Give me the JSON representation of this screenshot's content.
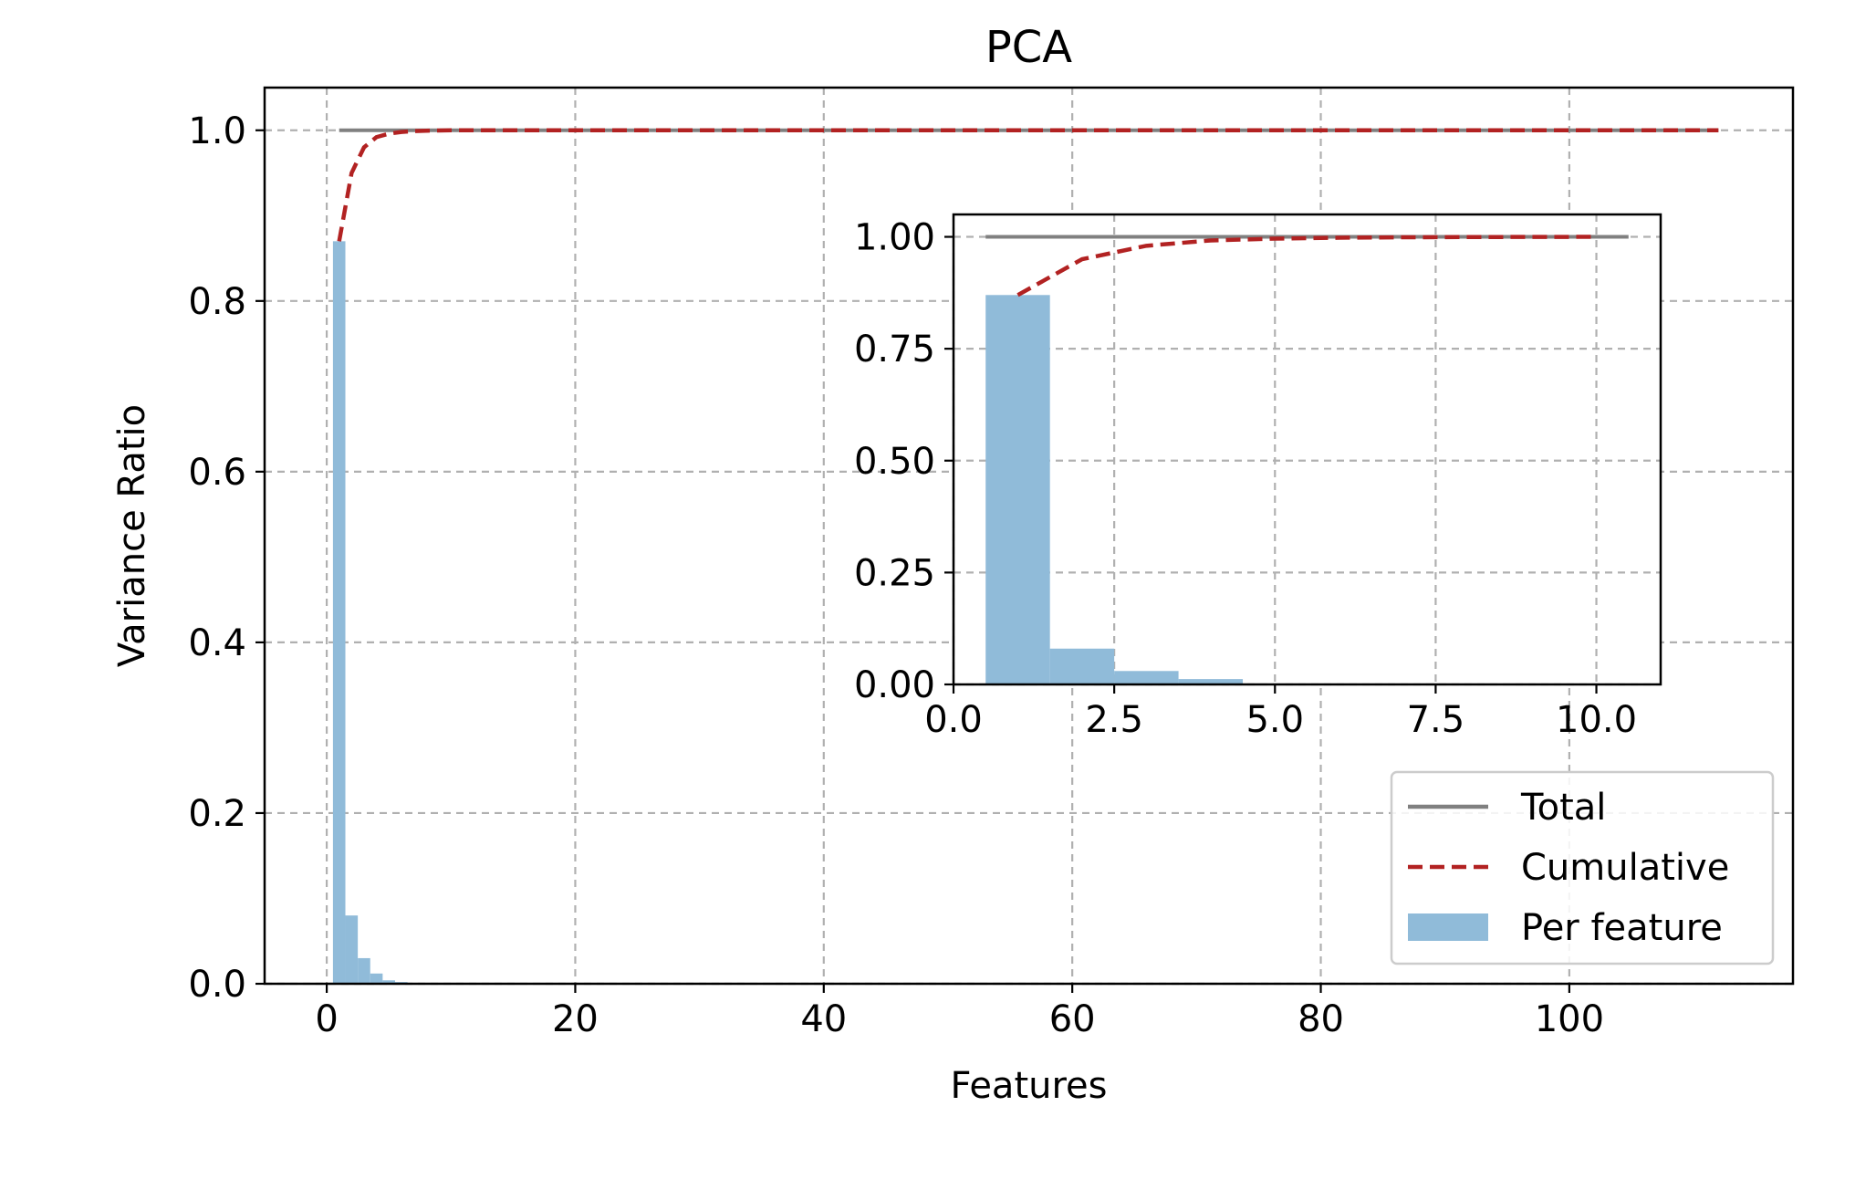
{
  "chart_data": {
    "type": "bar",
    "title": "PCA",
    "xlabel": "Features",
    "ylabel": "Variance Ratio",
    "xlim": [
      -5,
      118
    ],
    "ylim": [
      0,
      1.05
    ],
    "xticks": [
      0,
      20,
      40,
      60,
      80,
      100
    ],
    "xtick_labels": [
      "0",
      "20",
      "40",
      "60",
      "80",
      "100"
    ],
    "yticks": [
      0.0,
      0.2,
      0.4,
      0.6,
      0.8,
      1.0
    ],
    "ytick_labels": [
      "0.0",
      "0.2",
      "0.4",
      "0.6",
      "0.8",
      "1.0"
    ],
    "grid": true,
    "legend_position": "lower-right",
    "legend": [
      {
        "label": "Total",
        "style": "solid-line",
        "color": "#808080"
      },
      {
        "label": "Cumulative",
        "style": "dashed-line",
        "color": "#b22222"
      },
      {
        "label": "Per feature",
        "style": "patch",
        "color": "#90bbd9"
      }
    ],
    "colors": {
      "total": "#808080",
      "cumulative": "#b22222",
      "per_feature": "#90bbd9",
      "grid": "#b0b0b0"
    },
    "series": [
      {
        "name": "Per feature",
        "kind": "bar",
        "x": [
          1,
          2,
          3,
          4,
          5,
          6
        ],
        "values": [
          0.87,
          0.08,
          0.03,
          0.012,
          0.004,
          0.002
        ]
      },
      {
        "name": "Cumulative",
        "kind": "line",
        "x": [
          1,
          2,
          3,
          4,
          5,
          6,
          7,
          8,
          9,
          10,
          112
        ],
        "values": [
          0.87,
          0.95,
          0.98,
          0.992,
          0.996,
          0.998,
          0.999,
          0.9995,
          0.9998,
          1.0,
          1.0
        ]
      },
      {
        "name": "Total",
        "kind": "line",
        "x": [
          1,
          112
        ],
        "values": [
          1.0,
          1.0
        ]
      }
    ],
    "inset": {
      "type": "bar",
      "xlim": [
        0,
        11
      ],
      "ylim": [
        0,
        1.05
      ],
      "xticks": [
        0,
        2.5,
        5,
        7.5,
        10
      ],
      "xtick_labels": [
        "0.0",
        "2.5",
        "5.0",
        "7.5",
        "10.0"
      ],
      "yticks": [
        0,
        0.25,
        0.5,
        0.75,
        1.0
      ],
      "ytick_labels": [
        "0.00",
        "0.25",
        "0.50",
        "0.75",
        "1.00"
      ],
      "grid": true,
      "series": [
        {
          "name": "Per feature",
          "kind": "bar",
          "x": [
            1,
            2,
            3,
            4
          ],
          "values": [
            0.87,
            0.08,
            0.03,
            0.012
          ]
        },
        {
          "name": "Cumulative",
          "kind": "line",
          "x": [
            1,
            2,
            3,
            4,
            5,
            6,
            7,
            8,
            9,
            10
          ],
          "values": [
            0.87,
            0.95,
            0.98,
            0.992,
            0.996,
            0.998,
            0.999,
            0.9995,
            0.9998,
            1.0
          ]
        },
        {
          "name": "Total",
          "kind": "line",
          "x": [
            0.5,
            10.5
          ],
          "values": [
            1.0,
            1.0
          ]
        }
      ]
    }
  }
}
